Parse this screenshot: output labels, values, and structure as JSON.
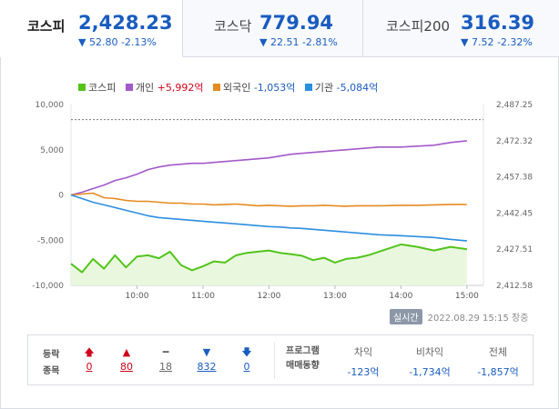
{
  "tabs": [
    {
      "name": "코스피",
      "value": "2,428.23",
      "change": "▼ 52.80 -2.13%",
      "active": true
    },
    {
      "name": "코스닥",
      "value": "779.94",
      "change": "▼ 22.51 -2.81%",
      "active": false
    },
    {
      "name": "코스피200",
      "value": "316.39",
      "change": "▼ 7.52 -2.32%",
      "active": false
    }
  ],
  "legend": [
    {
      "name": "코스피",
      "value": "",
      "color": "#52c41a"
    },
    {
      "name": "개인",
      "value": "+5,992억",
      "color": "#a259c9",
      "dir": "up"
    },
    {
      "name": "외국인",
      "value": "-1,053억",
      "color": "#e58a1f",
      "dir": "down"
    },
    {
      "name": "기관",
      "value": "-5,084억",
      "color": "#2b8ee0",
      "dir": "down"
    }
  ],
  "timestamp": {
    "badge": "실시간",
    "text": "2022.08.29 15:15 장중"
  },
  "bottom": {
    "label_line1": "등락",
    "label_line2": "종목",
    "counts": [
      {
        "icon": "arrow-up-icon",
        "glyph": "🡅",
        "value": "0",
        "dir": "up"
      },
      {
        "icon": "triangle-up-icon",
        "glyph": "▲",
        "value": "80",
        "dir": "up"
      },
      {
        "icon": "dash-icon",
        "glyph": "━",
        "value": "18",
        "dir": "flat"
      },
      {
        "icon": "triangle-down-icon",
        "glyph": "▼",
        "value": "832",
        "dir": "down"
      },
      {
        "icon": "arrow-down-icon",
        "glyph": "🡇",
        "value": "0",
        "dir": "down"
      }
    ],
    "program_line1": "프로그램",
    "program_line2": "매매동향",
    "program": [
      {
        "header": "차익",
        "value": "-123억"
      },
      {
        "header": "비차익",
        "value": "-1,734억"
      },
      {
        "header": "전체",
        "value": "-1,857억"
      }
    ]
  },
  "chart_data": {
    "type": "line",
    "x_ticks": [
      "10:00",
      "11:00",
      "12:00",
      "13:00",
      "14:00",
      "15:00"
    ],
    "y_left_ticks": [
      "10,000",
      "5,000",
      "0",
      "-5,000",
      "-10,000"
    ],
    "y_left_range": [
      -10000,
      10000
    ],
    "y_right_ticks": [
      "2,487.25",
      "2,472.32",
      "2,457.38",
      "2,442.45",
      "2,427.51",
      "2,412.58"
    ],
    "y_right_range": [
      2412.58,
      2487.25
    ],
    "reference_line_right": 2481.03,
    "x_minutes": [
      0,
      10,
      20,
      30,
      40,
      50,
      60,
      70,
      80,
      90,
      100,
      110,
      120,
      130,
      140,
      150,
      160,
      170,
      180,
      190,
      200,
      210,
      220,
      230,
      240,
      250,
      260,
      270,
      280,
      300,
      315,
      330,
      345,
      360
    ],
    "series": [
      {
        "name": "코스피",
        "axis": "right",
        "color": "#52c41a",
        "values": [
          2421.5,
          2418.0,
          2423.5,
          2419.5,
          2425.0,
          2420.0,
          2424.5,
          2425.0,
          2423.8,
          2426.5,
          2421.0,
          2418.8,
          2420.5,
          2422.5,
          2422.0,
          2425.0,
          2426.0,
          2426.5,
          2427.0,
          2426.0,
          2425.5,
          2424.8,
          2423.0,
          2424.0,
          2422.0,
          2423.5,
          2424.0,
          2425.0,
          2426.5,
          2429.5,
          2428.5,
          2427.0,
          2428.5,
          2427.5
        ]
      },
      {
        "name": "개인",
        "axis": "left",
        "color": "#a259c9",
        "values": [
          0,
          300,
          700,
          1100,
          1600,
          1900,
          2300,
          2800,
          3100,
          3300,
          3400,
          3500,
          3500,
          3600,
          3700,
          3800,
          3900,
          4000,
          4100,
          4300,
          4500,
          4600,
          4700,
          4800,
          4900,
          5000,
          5100,
          5200,
          5300,
          5300,
          5400,
          5500,
          5800,
          5992
        ]
      },
      {
        "name": "외국인",
        "axis": "left",
        "color": "#e58a1f",
        "values": [
          0,
          100,
          200,
          -300,
          -400,
          -600,
          -700,
          -700,
          -800,
          -900,
          -900,
          -1000,
          -1000,
          -1100,
          -1050,
          -1000,
          -1100,
          -1200,
          -1150,
          -1200,
          -1250,
          -1200,
          -1200,
          -1150,
          -1200,
          -1250,
          -1200,
          -1200,
          -1200,
          -1150,
          -1150,
          -1100,
          -1050,
          -1053
        ]
      },
      {
        "name": "기관",
        "axis": "left",
        "color": "#2b8ee0",
        "values": [
          0,
          -400,
          -800,
          -1100,
          -1400,
          -1700,
          -2000,
          -2300,
          -2500,
          -2600,
          -2700,
          -2800,
          -2900,
          -3000,
          -3100,
          -3200,
          -3300,
          -3400,
          -3500,
          -3550,
          -3650,
          -3700,
          -3800,
          -3900,
          -4000,
          -4100,
          -4200,
          -4300,
          -4400,
          -4500,
          -4600,
          -4700,
          -4900,
          -5084
        ]
      }
    ]
  }
}
